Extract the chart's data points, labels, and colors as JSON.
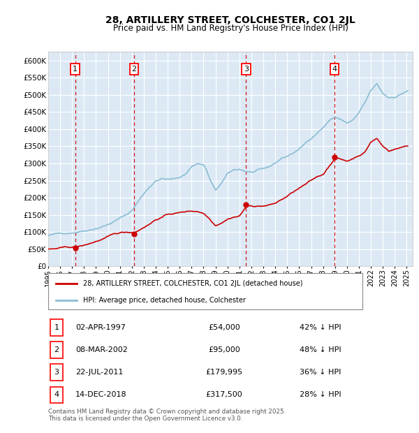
{
  "title": "28, ARTILLERY STREET, COLCHESTER, CO1 2JL",
  "subtitle": "Price paid vs. HM Land Registry's House Price Index (HPI)",
  "ylim": [
    0,
    625000
  ],
  "yticks": [
    0,
    50000,
    100000,
    150000,
    200000,
    250000,
    300000,
    350000,
    400000,
    450000,
    500000,
    550000,
    600000
  ],
  "plot_bg_color": "#dce9f5",
  "grid_color": "#ffffff",
  "legend_label_red": "28, ARTILLERY STREET, COLCHESTER, CO1 2JL (detached house)",
  "legend_label_blue": "HPI: Average price, detached house, Colchester",
  "sale_prices": [
    54000,
    95000,
    179995,
    317500
  ],
  "sale_labels": [
    "1",
    "2",
    "3",
    "4"
  ],
  "table_rows": [
    [
      "1",
      "02-APR-1997",
      "£54,000",
      "42% ↓ HPI"
    ],
    [
      "2",
      "08-MAR-2002",
      "£95,000",
      "48% ↓ HPI"
    ],
    [
      "3",
      "22-JUL-2011",
      "£179,995",
      "36% ↓ HPI"
    ],
    [
      "4",
      "14-DEC-2018",
      "£317,500",
      "28% ↓ HPI"
    ]
  ],
  "footer": "Contains HM Land Registry data © Crown copyright and database right 2025.\nThis data is licensed under the Open Government Licence v3.0.",
  "red_color": "#cc0000",
  "blue_color": "#89bdd3",
  "vline_color": "#cc0000"
}
